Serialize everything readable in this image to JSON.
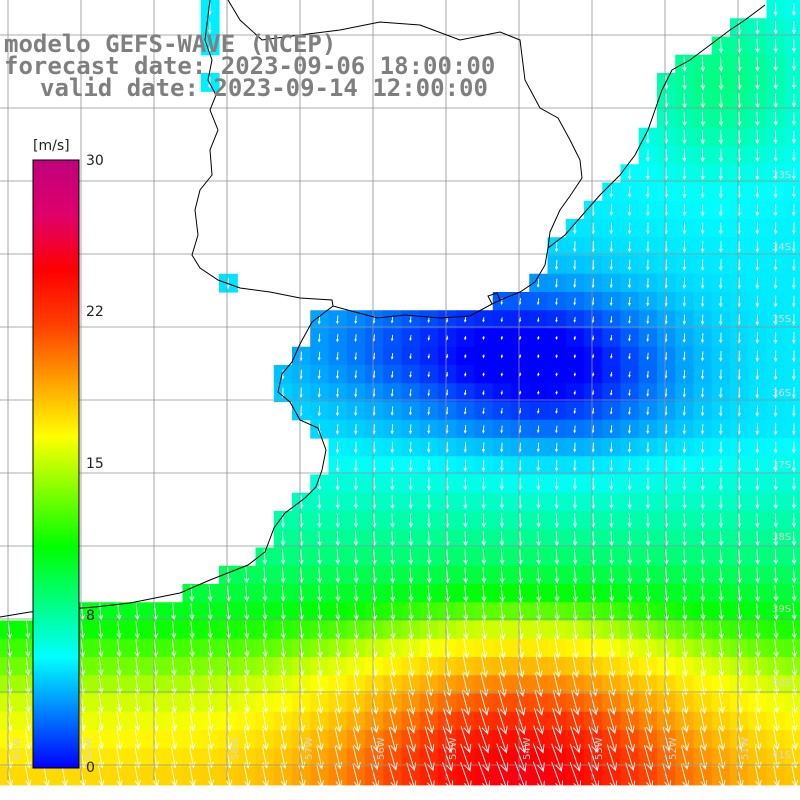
{
  "title": {
    "model": "modelo GEFS-WAVE (NCEP)",
    "forecast": "forecast date: 2023-09-06 18:00:00",
    "valid": "valid date: 2023-09-14 12:00:00"
  },
  "colorbar": {
    "units": "[m/s]",
    "ticks": [
      "30",
      "22",
      "15",
      "8",
      "0"
    ],
    "colors": [
      "#0000ff",
      "#0080ff",
      "#00ffff",
      "#00ff80",
      "#00ff00",
      "#80ff00",
      "#ffff00",
      "#ffa000",
      "#ff4000",
      "#ff0000",
      "#e0006a",
      "#c0007c"
    ]
  },
  "grid": {
    "lat_labels": [
      "33S",
      "34S",
      "35S",
      "36S",
      "37S",
      "38S",
      "39S",
      "40S",
      "41S"
    ],
    "lon_labels": [
      "61W",
      "60W",
      "58W",
      "57W",
      "56W",
      "55W",
      "54W",
      "53W",
      "52W",
      "51W"
    ]
  },
  "colors": {
    "land": "#ffffff",
    "coastline": "#000000",
    "gridline": "#909090",
    "arrow": "#ffffff"
  }
}
